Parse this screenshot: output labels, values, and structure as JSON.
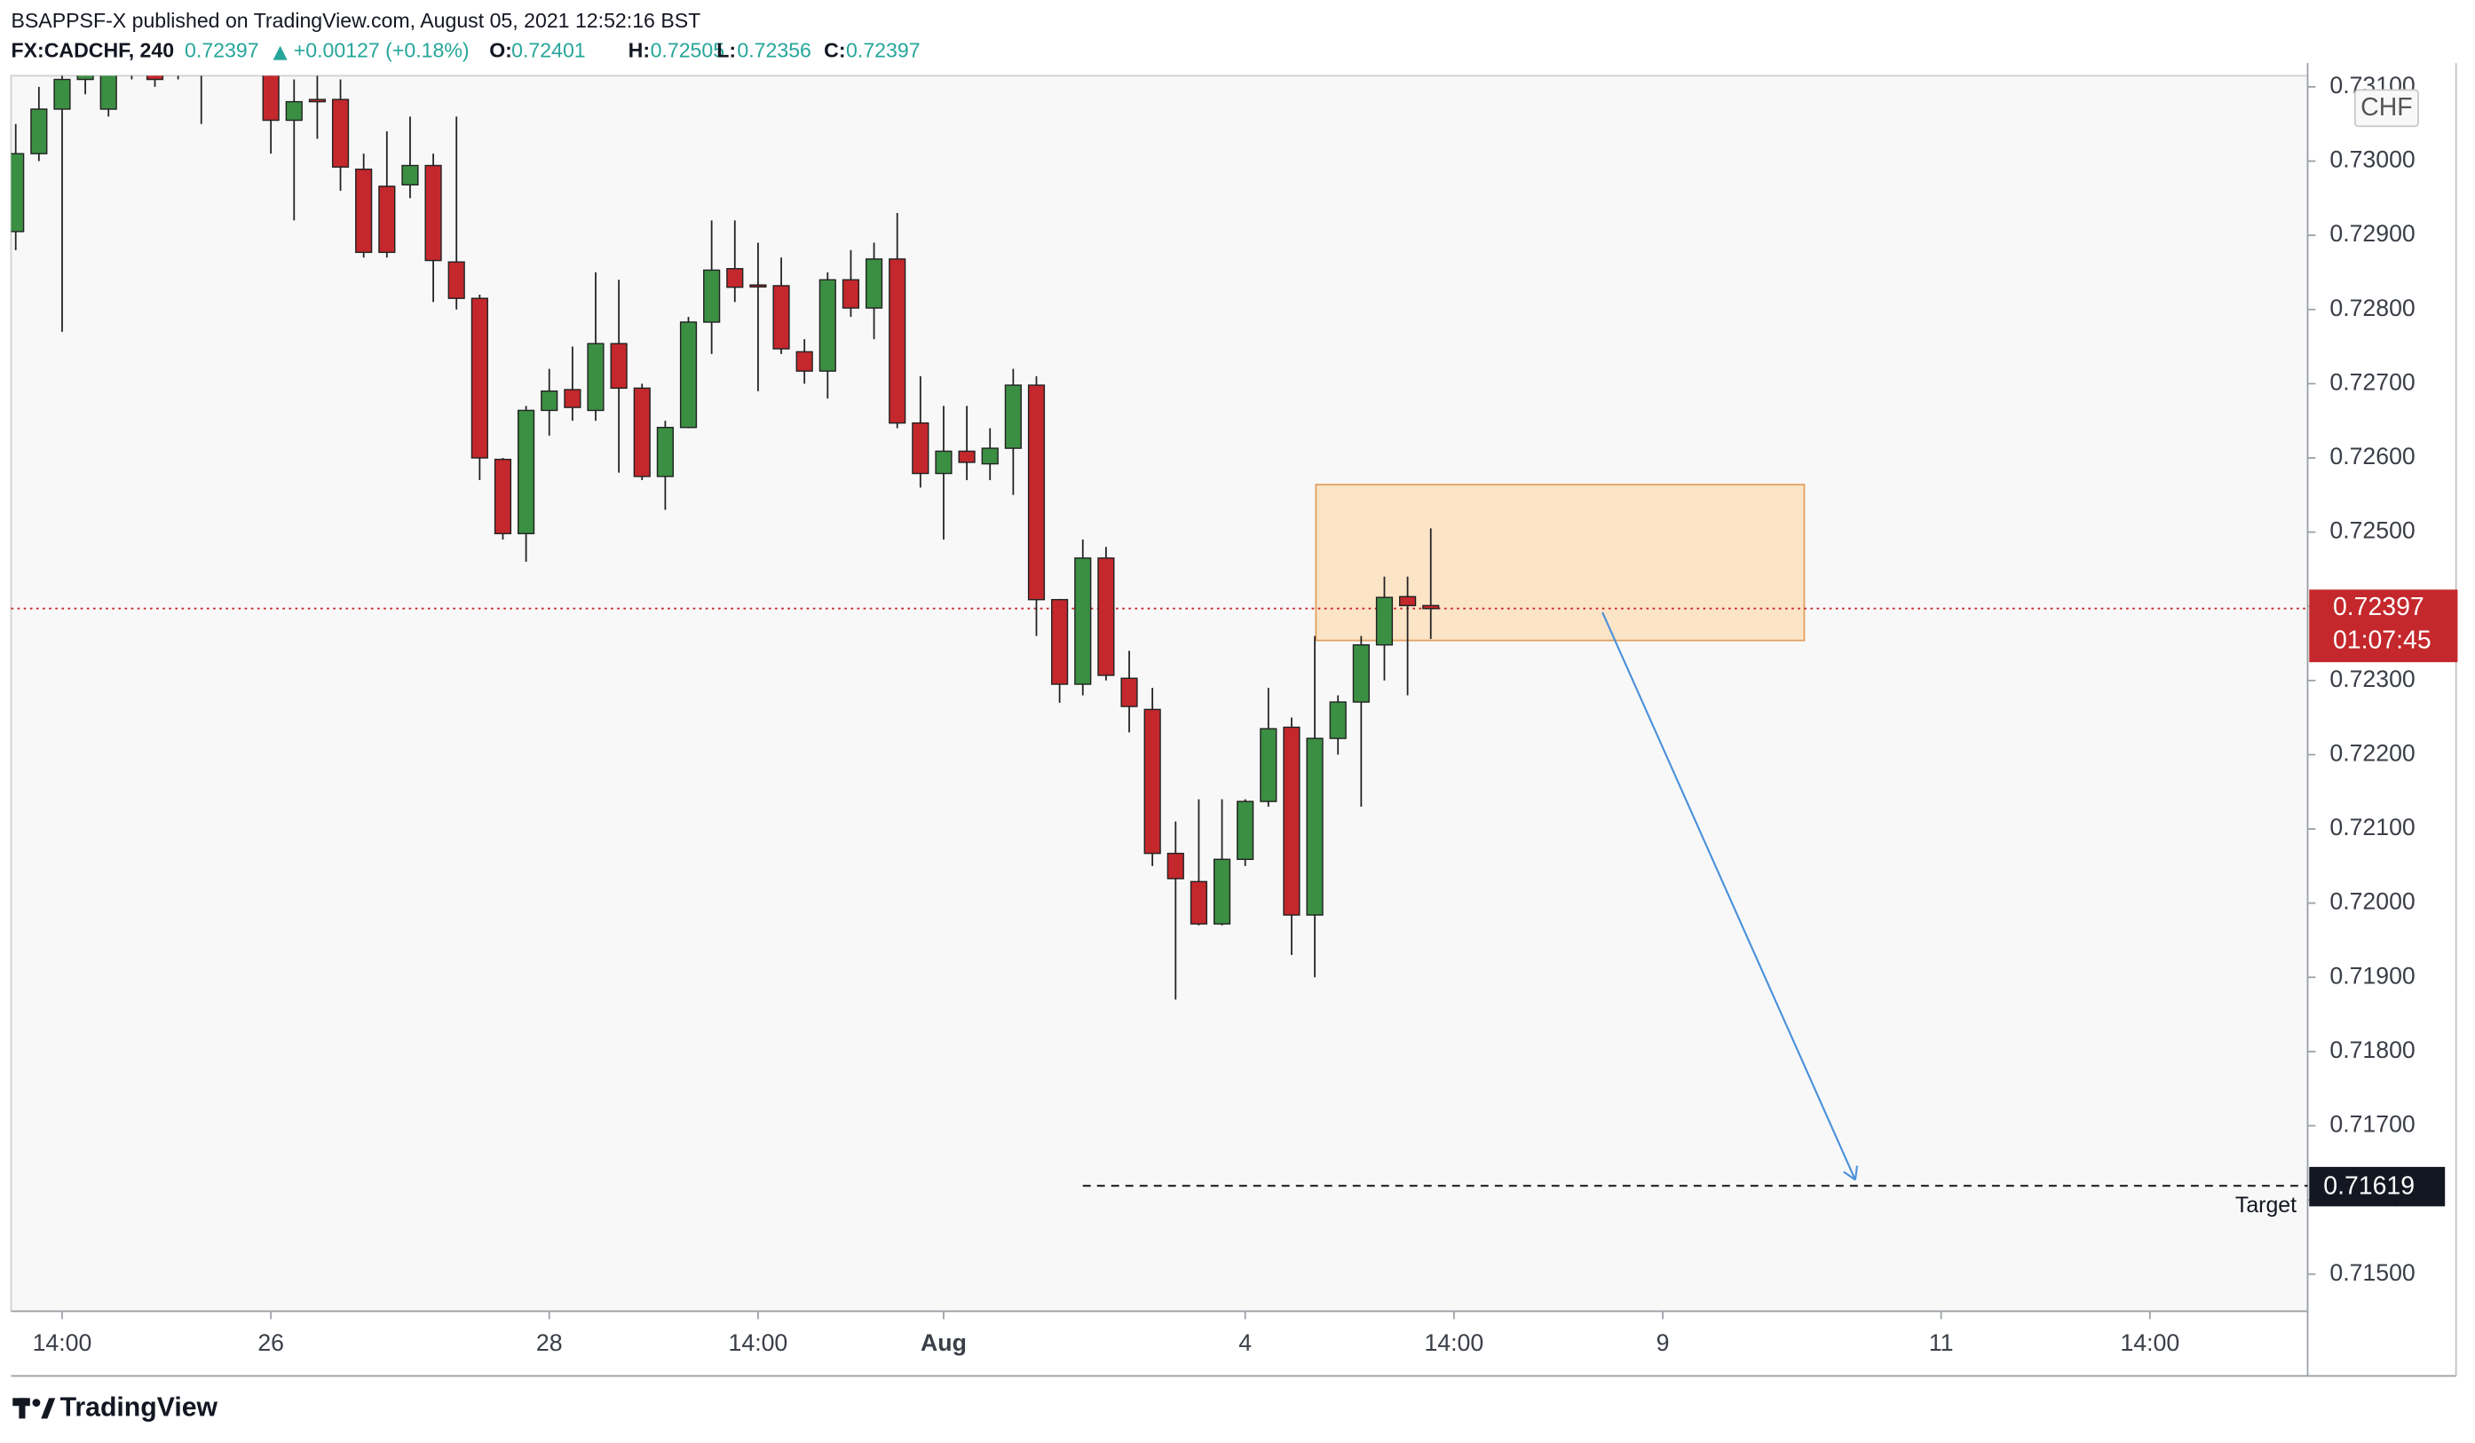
{
  "header": {
    "publisher": "BSAPPSF-X published on TradingView.com, August 05, 2021 12:52:16 BST",
    "symbol": "FX:CADCHF, 240",
    "last": "0.72397",
    "change": "+0.00127 (+0.18%)",
    "o_label": "O:",
    "o": "0.72401",
    "h_label": "H:",
    "h": "0.72505",
    "l_label": "L:",
    "l": "0.72356",
    "c_label": "C:",
    "c": "0.72397"
  },
  "chart_data": {
    "type": "candlestick",
    "open": [
      0.72905,
      0.7301,
      0.7307,
      0.7311,
      0.7307,
      0.7314,
      0.7313,
      0.7312,
      0.7315,
      0.7313,
      0.7316,
      0.7312,
      0.73055,
      0.73083,
      0.73083,
      0.72989,
      0.72966,
      0.72968,
      0.72994,
      0.72864,
      0.72815,
      0.72598,
      0.72498,
      0.72664,
      0.72692,
      0.72664,
      0.72754,
      0.72694,
      0.72575,
      0.72641,
      0.72783,
      0.72855,
      0.72833,
      0.72832,
      0.72743,
      0.72717,
      0.7284,
      0.72802,
      0.72868,
      0.72647,
      0.72579,
      0.72609,
      0.72592,
      0.72613,
      0.72698,
      0.72409,
      0.72295,
      0.72465,
      0.72303,
      0.72261,
      0.72067,
      0.72029,
      0.71972,
      0.72059,
      0.72137,
      0.72237,
      0.71984,
      0.72222,
      0.72271,
      0.72348,
      0.72413,
      0.72401
    ],
    "high": [
      0.7305,
      0.731,
      0.7313,
      0.7316,
      0.7314,
      0.7316,
      0.7315,
      0.7317,
      0.7317,
      0.7318,
      0.7318,
      0.7313,
      0.7311,
      0.7312,
      0.7311,
      0.7301,
      0.7304,
      0.7306,
      0.7301,
      0.7306,
      0.7282,
      0.726,
      0.7267,
      0.7272,
      0.7275,
      0.7285,
      0.7284,
      0.727,
      0.7265,
      0.7279,
      0.7292,
      0.7292,
      0.7289,
      0.7287,
      0.7276,
      0.7285,
      0.7288,
      0.7289,
      0.7293,
      0.7271,
      0.7267,
      0.7267,
      0.7264,
      0.7272,
      0.7271,
      0.7241,
      0.7249,
      0.7248,
      0.7234,
      0.7229,
      0.7211,
      0.7214,
      0.7214,
      0.7214,
      0.7229,
      0.7225,
      0.7236,
      0.7228,
      0.7236,
      0.7244,
      0.7244,
      0.72505
    ],
    "low": [
      0.7288,
      0.73,
      0.7277,
      0.7309,
      0.7306,
      0.7311,
      0.731,
      0.7311,
      0.7305,
      0.7312,
      0.7312,
      0.7301,
      0.7292,
      0.7303,
      0.7296,
      0.7287,
      0.7287,
      0.7295,
      0.7281,
      0.728,
      0.7257,
      0.7249,
      0.7246,
      0.7263,
      0.7265,
      0.7265,
      0.7258,
      0.7257,
      0.7253,
      0.7264,
      0.7274,
      0.7281,
      0.7269,
      0.7274,
      0.727,
      0.7268,
      0.7279,
      0.7276,
      0.7264,
      0.7256,
      0.7249,
      0.7257,
      0.7257,
      0.7255,
      0.7236,
      0.7227,
      0.7228,
      0.723,
      0.7223,
      0.7205,
      0.7187,
      0.7197,
      0.7197,
      0.7205,
      0.7213,
      0.7193,
      0.719,
      0.722,
      0.7213,
      0.723,
      0.7228,
      0.72356
    ],
    "close": [
      0.7301,
      0.7307,
      0.7311,
      0.7314,
      0.7312,
      0.7312,
      0.7311,
      0.7315,
      0.7312,
      0.7316,
      0.7313,
      0.73055,
      0.7308,
      0.7308,
      0.72992,
      0.72877,
      0.72877,
      0.72994,
      0.72866,
      0.72815,
      0.726,
      0.72498,
      0.72664,
      0.7269,
      0.72668,
      0.72754,
      0.72694,
      0.72575,
      0.72641,
      0.72783,
      0.72853,
      0.7283,
      0.72832,
      0.72747,
      0.72717,
      0.7284,
      0.72802,
      0.72868,
      0.72647,
      0.72579,
      0.72609,
      0.72594,
      0.72613,
      0.72698,
      0.72409,
      0.72295,
      0.72465,
      0.72307,
      0.72265,
      0.72067,
      0.72033,
      0.71972,
      0.72059,
      0.72137,
      0.72235,
      0.71984,
      0.72222,
      0.72271,
      0.72348,
      0.72412,
      0.72401,
      0.72397
    ],
    "up_color": "#3b8f43",
    "down_color": "#c4282c",
    "ylim": [
      0.7145,
      0.73115
    ],
    "yticks": [
      {
        "value": 0.731,
        "label": "0.73100"
      },
      {
        "value": 0.73,
        "label": "0.73000"
      },
      {
        "value": 0.729,
        "label": "0.72900"
      },
      {
        "value": 0.728,
        "label": "0.72800"
      },
      {
        "value": 0.727,
        "label": "0.72700"
      },
      {
        "value": 0.726,
        "label": "0.72600"
      },
      {
        "value": 0.725,
        "label": "0.72500"
      },
      {
        "value": 0.724,
        "label": "0.72400"
      },
      {
        "value": 0.723,
        "label": "0.72300"
      },
      {
        "value": 0.722,
        "label": "0.72200"
      },
      {
        "value": 0.721,
        "label": "0.72100"
      },
      {
        "value": 0.72,
        "label": "0.72000"
      },
      {
        "value": 0.719,
        "label": "0.71900"
      },
      {
        "value": 0.718,
        "label": "0.71800"
      },
      {
        "value": 0.717,
        "label": "0.71700"
      },
      {
        "value": 0.716,
        "label": "0.71600"
      },
      {
        "value": 0.715,
        "label": "0.71500"
      }
    ],
    "xlim": [
      -0.2,
      98.8
    ],
    "xticks": [
      {
        "value": 2,
        "label": "14:00"
      },
      {
        "value": 11,
        "label": "26"
      },
      {
        "value": 23,
        "label": "28"
      },
      {
        "value": 32,
        "label": "14:00"
      },
      {
        "value": 40,
        "label": "Aug"
      },
      {
        "value": 53,
        "label": "4"
      },
      {
        "value": 62,
        "label": "14:00"
      },
      {
        "value": 71,
        "label": "9"
      },
      {
        "value": 83,
        "label": "11"
      },
      {
        "value": 92,
        "label": "14:00"
      }
    ],
    "currency": "CHF",
    "last_price": {
      "value": 0.72397,
      "label": "0.72397",
      "color": "#c4282c"
    },
    "countdown": "01:07:45",
    "target": {
      "value": 0.71619,
      "label": "0.71619",
      "name": "Target",
      "start": 46
    },
    "zone": {
      "top": 0.72564,
      "bottom": 0.72354,
      "start": 56.05,
      "end": 77.1,
      "color": "#fce4c6"
    },
    "arrow": {
      "x": [
        68.4,
        79.3
      ],
      "y": [
        0.72392,
        0.71627
      ],
      "color": "#4a90d9"
    }
  },
  "footer": {
    "brand": "TradingView"
  }
}
